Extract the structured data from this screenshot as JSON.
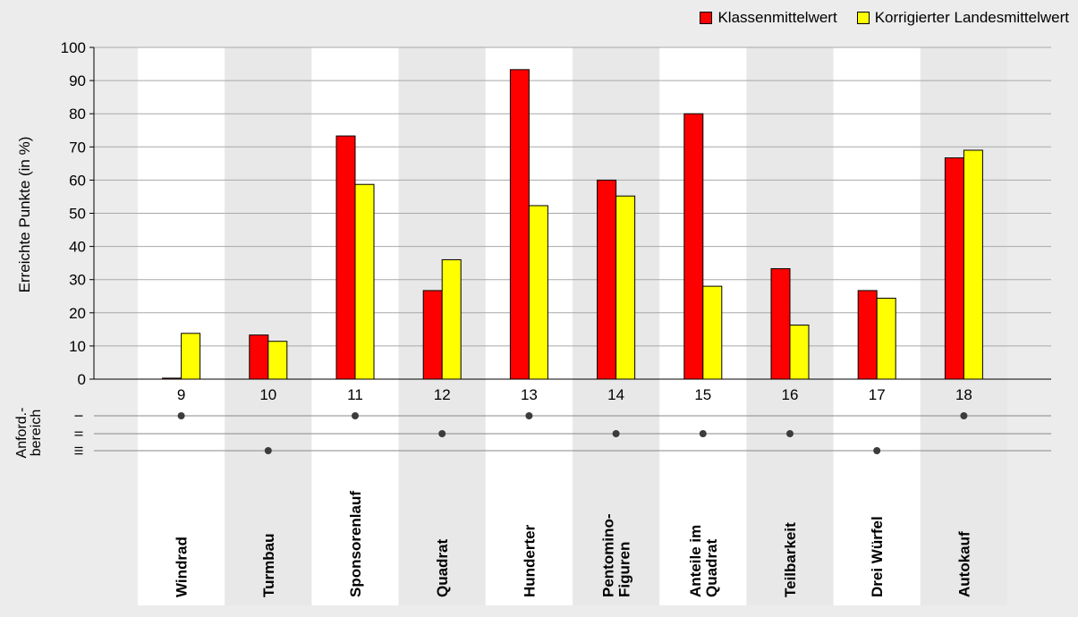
{
  "legend": {
    "class_label": "Klassenmittelwert",
    "land_label": "Korrigierter Landesmittelwert"
  },
  "colors": {
    "class": "#ff0000",
    "land": "#ffff00",
    "stripe_a": "#ffffff",
    "stripe_b": "#e8e8e8",
    "dot": "#3c3c3c"
  },
  "requirement": {
    "title": "Anford.-\nbereich",
    "levels": [
      "I",
      "II",
      "III"
    ]
  },
  "chart_data": {
    "type": "bar",
    "title": "",
    "ylabel": "Erreichte Punkte (in %)",
    "xlabel": "",
    "ylim": [
      0,
      100
    ],
    "yticks": [
      0,
      10,
      20,
      30,
      40,
      50,
      60,
      70,
      80,
      90,
      100
    ],
    "grid": true,
    "legend_position": "top-right",
    "categories": [
      "9",
      "10",
      "11",
      "12",
      "13",
      "14",
      "15",
      "16",
      "17",
      "18"
    ],
    "task_names": [
      "Windrad",
      "Turmbau",
      "Sponsorenlauf",
      "Quadrat",
      "Hunderter",
      "Pentomino-\nFiguren",
      "Anteile im\nQuadrat",
      "Teilbarkeit",
      "Drei Würfel",
      "Autokauf"
    ],
    "requirement_level": [
      "I",
      "III",
      "I",
      "II",
      "I",
      "II",
      "II",
      "II",
      "III",
      "I"
    ],
    "series": [
      {
        "name": "Klassenmittelwert",
        "values": [
          0.3,
          13.3,
          73.3,
          26.7,
          93.3,
          60.0,
          80.0,
          33.3,
          26.7,
          66.7
        ]
      },
      {
        "name": "Korrigierter Landesmittelwert",
        "values": [
          13.8,
          11.4,
          58.7,
          36.0,
          52.3,
          55.2,
          28.0,
          16.3,
          24.4,
          69.0
        ]
      }
    ]
  }
}
